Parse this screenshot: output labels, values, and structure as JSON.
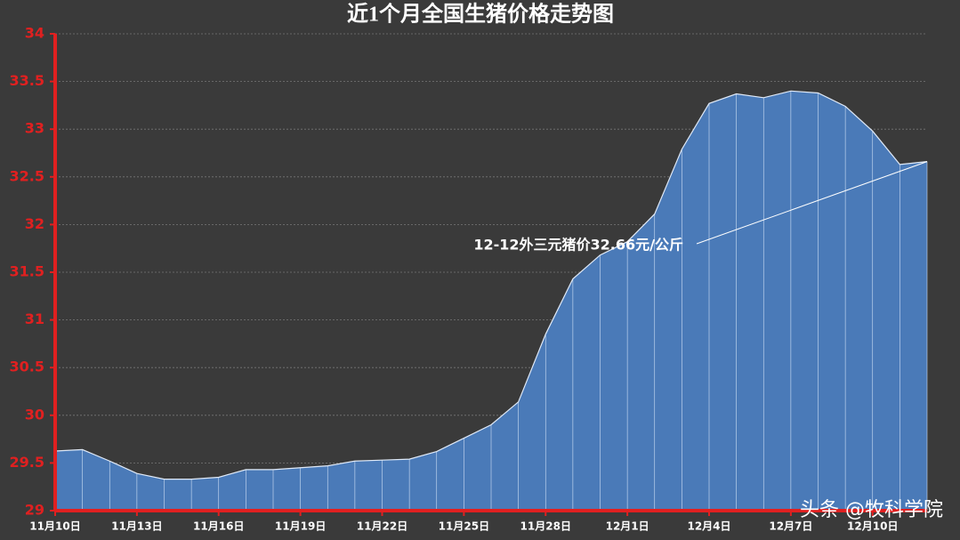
{
  "chart_data": {
    "type": "area",
    "title": "近1个月全国生猪价格走势图",
    "categories": [
      "11月10日",
      null,
      null,
      "11月13日",
      null,
      null,
      "11月16日",
      null,
      null,
      "11月19日",
      null,
      null,
      "11月22日",
      null,
      null,
      "11月25日",
      null,
      null,
      "11月28日",
      null,
      null,
      "12月1日",
      null,
      null,
      "12月4日",
      null,
      null,
      "12月7日",
      null,
      null,
      "12月10日",
      null,
      null
    ],
    "values": [
      29.625,
      29.64,
      29.52,
      29.39,
      29.33,
      29.33,
      29.35,
      29.43,
      29.43,
      29.45,
      29.47,
      29.52,
      29.53,
      29.54,
      29.62,
      29.76,
      29.9,
      30.14,
      30.85,
      31.43,
      31.68,
      31.82,
      32.11,
      32.79,
      33.27,
      33.37,
      33.33,
      33.4,
      33.38,
      33.24,
      32.98,
      32.63,
      32.66
    ],
    "color": "#4a7ab8",
    "ylim": [
      29,
      34
    ],
    "yticks": [
      29,
      29.5,
      30,
      30.5,
      31,
      31.5,
      32,
      32.5,
      33,
      33.5,
      34
    ],
    "grid": true,
    "annotation": "12-12外三元猪价32.66元/公斤",
    "watermark": "头条 @牧科学院"
  }
}
